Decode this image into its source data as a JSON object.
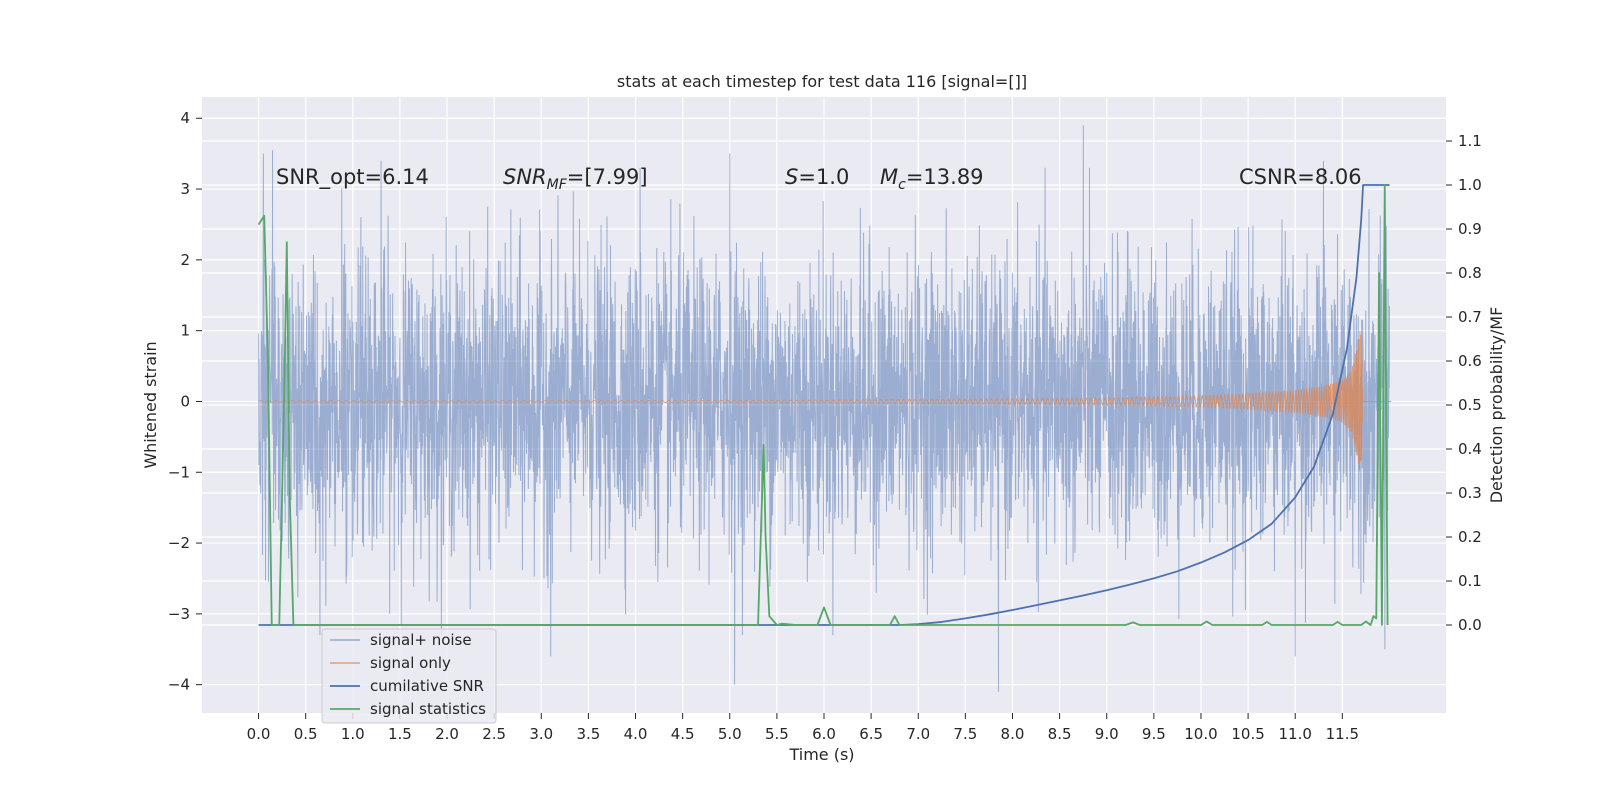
{
  "chart_data": {
    "type": "line",
    "title": "stats at each timestep for test data 116 [signal=[]]",
    "xlabel": "Time (s)",
    "ylabel": "Whitened strain",
    "ylabel_right": "Detection probability/MF",
    "xlim": [
      -0.6,
      12.6
    ],
    "ylim": [
      -4.4,
      4.3
    ],
    "ylim_right": [
      -0.2,
      1.2
    ],
    "x_ticks": [
      "0.0",
      "0.5",
      "1.0",
      "1.5",
      "2.0",
      "2.5",
      "3.0",
      "3.5",
      "4.0",
      "4.5",
      "5.0",
      "5.5",
      "6.0",
      "6.5",
      "7.0",
      "7.5",
      "8.0",
      "8.5",
      "9.0",
      "9.5",
      "10.0",
      "10.5",
      "11.0",
      "11.5"
    ],
    "y_ticks": [
      "4",
      "3",
      "2",
      "1",
      "0",
      "−1",
      "−2",
      "−3",
      "−4"
    ],
    "y_ticks_right": [
      "1.1",
      "1.0",
      "0.9",
      "0.8",
      "0.7",
      "0.6",
      "0.5",
      "0.4",
      "0.3",
      "0.2",
      "0.1",
      "0.0"
    ],
    "grid": true,
    "legend_position": "lower-left",
    "annotations": {
      "snr_opt": "SNR_opt=6.14",
      "snr_mf_sym": "SNR",
      "snr_mf_sub": "MF",
      "snr_mf_val": "=[7.99]",
      "s_sym": "S",
      "s_val": "=1.0",
      "mc_sym": "M",
      "mc_sub": "c",
      "mc_val": "=13.89",
      "csnr": "CSNR=8.06"
    },
    "colors": {
      "signal_noise": "#4c72b0",
      "signal_only": "#dd8452",
      "cumulative_snr": "#4c72b0",
      "signal_statistics": "#55a868",
      "axes_background": "#eaeaf2",
      "grid": "#ffffff"
    },
    "series": [
      {
        "name": "signal+ noise",
        "axis": "left",
        "x_range": [
          0.0,
          12.0
        ],
        "approx_std": 1.0,
        "approx_peaks": [
          [
            0.05,
            3.5
          ],
          [
            0.15,
            3.55
          ],
          [
            1.3,
            3.4
          ],
          [
            3.1,
            3.25
          ],
          [
            4.05,
            3.3
          ],
          [
            5.0,
            3.5
          ],
          [
            8.75,
            3.9
          ],
          [
            11.3,
            3.4
          ],
          [
            0.65,
            -3.3
          ],
          [
            5.05,
            -4.0
          ],
          [
            7.85,
            -4.1
          ],
          [
            3.1,
            -3.6
          ],
          [
            11.0,
            -3.6
          ],
          [
            11.95,
            -3.5
          ]
        ]
      },
      {
        "name": "signal only",
        "axis": "left",
        "x": [
          0.0,
          3.0,
          6.0,
          7.0,
          8.0,
          9.0,
          10.0,
          10.5,
          11.0,
          11.3,
          11.5,
          11.6,
          11.65,
          11.7,
          11.72
        ],
        "amplitude": [
          0.01,
          0.01,
          0.02,
          0.03,
          0.04,
          0.05,
          0.08,
          0.11,
          0.16,
          0.22,
          0.3,
          0.45,
          0.8,
          1.1,
          0.0
        ]
      },
      {
        "name": "cumilative SNR",
        "axis": "right",
        "x": [
          0.0,
          6.8,
          7.0,
          7.25,
          7.5,
          7.75,
          8.0,
          8.25,
          8.5,
          8.75,
          9.0,
          9.25,
          9.5,
          9.75,
          10.0,
          10.25,
          10.5,
          10.75,
          11.0,
          11.2,
          11.4,
          11.55,
          11.65,
          11.7,
          11.72,
          11.75,
          11.85,
          12.0
        ],
        "y": [
          0.0,
          0.0,
          0.002,
          0.007,
          0.015,
          0.024,
          0.034,
          0.045,
          0.056,
          0.067,
          0.079,
          0.092,
          0.106,
          0.122,
          0.142,
          0.165,
          0.193,
          0.23,
          0.29,
          0.36,
          0.48,
          0.63,
          0.79,
          0.92,
          1.0,
          1.0,
          1.0,
          1.0
        ]
      },
      {
        "name": "signal statistics",
        "axis": "right",
        "x": [
          0.0,
          0.03,
          0.06,
          0.1,
          0.14,
          0.18,
          0.22,
          0.27,
          0.3,
          0.33,
          0.37,
          0.4,
          1.0,
          5.3,
          5.36,
          5.38,
          5.42,
          5.5,
          5.55,
          5.7,
          5.93,
          6.0,
          6.07,
          6.7,
          6.75,
          6.8,
          9.2,
          9.28,
          9.35,
          10.0,
          10.06,
          10.12,
          10.65,
          10.7,
          10.75,
          11.4,
          11.45,
          11.5,
          11.7,
          11.75,
          11.8,
          11.83,
          11.86,
          11.89,
          11.92,
          11.95,
          11.98
        ],
        "y": [
          0.91,
          0.92,
          0.93,
          0.6,
          0.0,
          0.0,
          0.0,
          0.5,
          0.87,
          0.3,
          0.0,
          0.0,
          0.0,
          0.0,
          0.41,
          0.2,
          0.02,
          0.0,
          0.003,
          0.0,
          0.0,
          0.04,
          0.0,
          0.0,
          0.02,
          0.0,
          0.0,
          0.006,
          0.0,
          0.0,
          0.008,
          0.0,
          0.0,
          0.007,
          0.0,
          0.0,
          0.007,
          0.0,
          0.0,
          0.008,
          0.0,
          0.02,
          0.015,
          0.8,
          0.0,
          1.0,
          0.0
        ]
      }
    ]
  }
}
